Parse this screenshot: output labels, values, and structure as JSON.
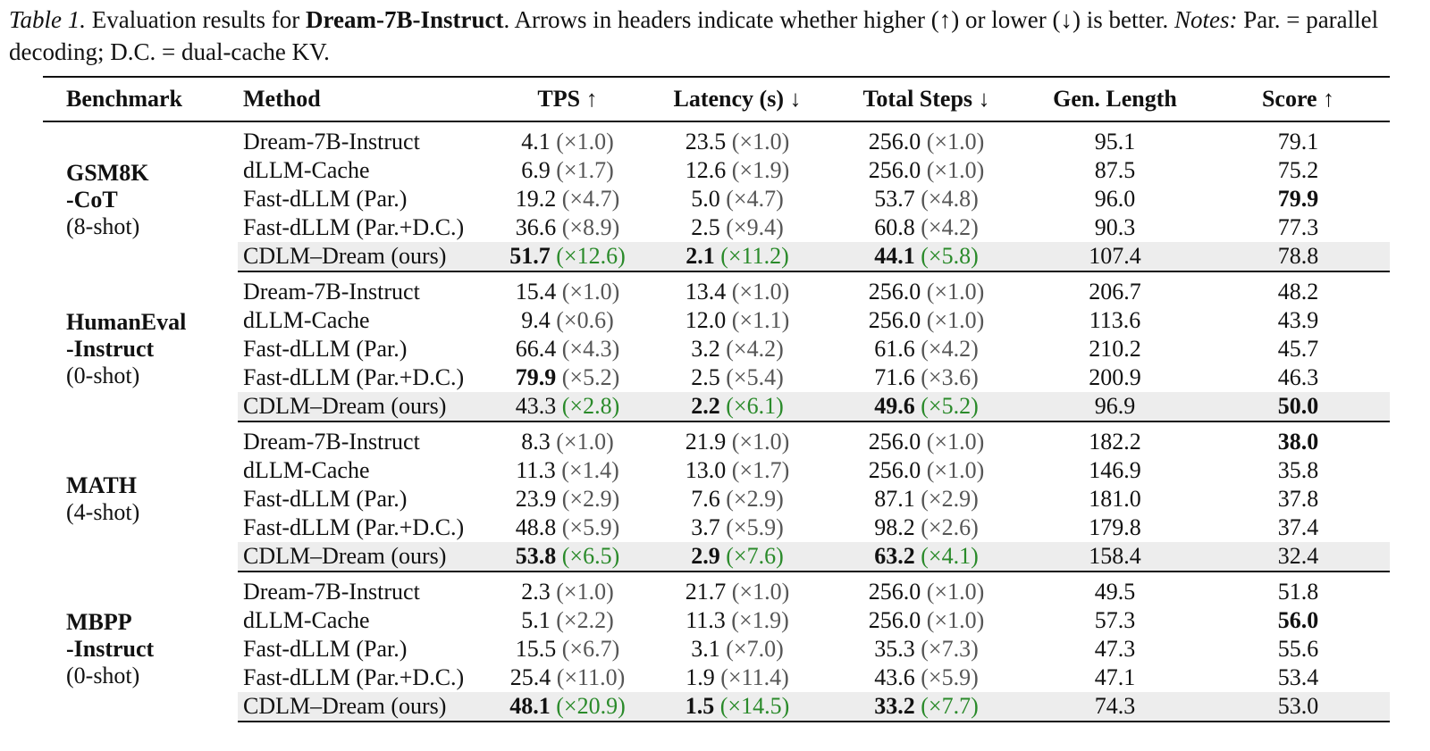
{
  "caption": {
    "label": "Table 1.",
    "text_a": "Evaluation results for",
    "model": "Dream-7B-Instruct",
    "text_b": ". Arrows in headers indicate whether higher (↑) or lower (↓) is better.",
    "notes_label": "Notes:",
    "notes_text": "Par. = parallel decoding; D.C. = dual-cache KV."
  },
  "headers": [
    "Benchmark",
    "Method",
    "TPS ↑",
    "Latency (s) ↓",
    "Total Steps ↓",
    "Gen. Length",
    "Score ↑"
  ],
  "groups": [
    {
      "name_lines": [
        "GSM8K",
        "-CoT"
      ],
      "shot": "(8-shot)",
      "rows": [
        {
          "method": "Dream-7B-Instruct",
          "tps": "4.1",
          "tps_x": "(×1.0)",
          "lat": "23.5",
          "lat_x": "(×1.0)",
          "steps": "256.0",
          "steps_x": "(×1.0)",
          "len": "95.1",
          "score": "79.1"
        },
        {
          "method": "dLLM-Cache",
          "tps": "6.9",
          "tps_x": "(×1.7)",
          "lat": "12.6",
          "lat_x": "(×1.9)",
          "steps": "256.0",
          "steps_x": "(×1.0)",
          "len": "87.5",
          "score": "75.2"
        },
        {
          "method": "Fast-dLLM (Par.)",
          "tps": "19.2",
          "tps_x": "(×4.7)",
          "lat": "5.0",
          "lat_x": "(×4.7)",
          "steps": "53.7",
          "steps_x": "(×4.8)",
          "len": "96.0",
          "score": "79.9",
          "bold": [
            "score"
          ]
        },
        {
          "method": "Fast-dLLM (Par.+D.C.)",
          "tps": "36.6",
          "tps_x": "(×8.9)",
          "lat": "2.5",
          "lat_x": "(×9.4)",
          "steps": "60.8",
          "steps_x": "(×4.2)",
          "len": "90.3",
          "score": "77.3"
        },
        {
          "method": "CDLM–Dream (ours)",
          "tps": "51.7",
          "tps_x": "(×12.6)",
          "lat": "2.1",
          "lat_x": "(×11.2)",
          "steps": "44.1",
          "steps_x": "(×5.8)",
          "len": "107.4",
          "score": "78.8",
          "ours": true,
          "bold": [
            "tps",
            "lat",
            "steps"
          ]
        }
      ]
    },
    {
      "name_lines": [
        "HumanEval",
        "-Instruct"
      ],
      "shot": "(0-shot)",
      "rows": [
        {
          "method": "Dream-7B-Instruct",
          "tps": "15.4",
          "tps_x": "(×1.0)",
          "lat": "13.4",
          "lat_x": "(×1.0)",
          "steps": "256.0",
          "steps_x": "(×1.0)",
          "len": "206.7",
          "score": "48.2"
        },
        {
          "method": "dLLM-Cache",
          "tps": "9.4",
          "tps_x": "(×0.6)",
          "lat": "12.0",
          "lat_x": "(×1.1)",
          "steps": "256.0",
          "steps_x": "(×1.0)",
          "len": "113.6",
          "score": "43.9"
        },
        {
          "method": "Fast-dLLM (Par.)",
          "tps": "66.4",
          "tps_x": "(×4.3)",
          "lat": "3.2",
          "lat_x": "(×4.2)",
          "steps": "61.6",
          "steps_x": "(×4.2)",
          "len": "210.2",
          "score": "45.7"
        },
        {
          "method": "Fast-dLLM (Par.+D.C.)",
          "tps": "79.9",
          "tps_x": "(×5.2)",
          "lat": "2.5",
          "lat_x": "(×5.4)",
          "steps": "71.6",
          "steps_x": "(×3.6)",
          "len": "200.9",
          "score": "46.3",
          "bold": [
            "tps"
          ]
        },
        {
          "method": "CDLM–Dream (ours)",
          "tps": "43.3",
          "tps_x": "(×2.8)",
          "lat": "2.2",
          "lat_x": "(×6.1)",
          "steps": "49.6",
          "steps_x": "(×5.2)",
          "len": "96.9",
          "score": "50.0",
          "ours": true,
          "bold": [
            "lat",
            "steps",
            "score"
          ]
        }
      ]
    },
    {
      "name_lines": [
        "MATH"
      ],
      "shot": "(4-shot)",
      "rows": [
        {
          "method": "Dream-7B-Instruct",
          "tps": "8.3",
          "tps_x": "(×1.0)",
          "lat": "21.9",
          "lat_x": "(×1.0)",
          "steps": "256.0",
          "steps_x": "(×1.0)",
          "len": "182.2",
          "score": "38.0",
          "bold": [
            "score"
          ]
        },
        {
          "method": "dLLM-Cache",
          "tps": "11.3",
          "tps_x": "(×1.4)",
          "lat": "13.0",
          "lat_x": "(×1.7)",
          "steps": "256.0",
          "steps_x": "(×1.0)",
          "len": "146.9",
          "score": "35.8"
        },
        {
          "method": "Fast-dLLM (Par.)",
          "tps": "23.9",
          "tps_x": "(×2.9)",
          "lat": "7.6",
          "lat_x": "(×2.9)",
          "steps": "87.1",
          "steps_x": "(×2.9)",
          "len": "181.0",
          "score": "37.8"
        },
        {
          "method": "Fast-dLLM (Par.+D.C.)",
          "tps": "48.8",
          "tps_x": "(×5.9)",
          "lat": "3.7",
          "lat_x": "(×5.9)",
          "steps": "98.2",
          "steps_x": "(×2.6)",
          "len": "179.8",
          "score": "37.4"
        },
        {
          "method": "CDLM–Dream (ours)",
          "tps": "53.8",
          "tps_x": "(×6.5)",
          "lat": "2.9",
          "lat_x": "(×7.6)",
          "steps": "63.2",
          "steps_x": "(×4.1)",
          "len": "158.4",
          "score": "32.4",
          "ours": true,
          "bold": [
            "tps",
            "lat",
            "steps"
          ]
        }
      ]
    },
    {
      "name_lines": [
        "MBPP",
        "-Instruct"
      ],
      "shot": "(0-shot)",
      "rows": [
        {
          "method": "Dream-7B-Instruct",
          "tps": "2.3",
          "tps_x": "(×1.0)",
          "lat": "21.7",
          "lat_x": "(×1.0)",
          "steps": "256.0",
          "steps_x": "(×1.0)",
          "len": "49.5",
          "score": "51.8"
        },
        {
          "method": "dLLM-Cache",
          "tps": "5.1",
          "tps_x": "(×2.2)",
          "lat": "11.3",
          "lat_x": "(×1.9)",
          "steps": "256.0",
          "steps_x": "(×1.0)",
          "len": "57.3",
          "score": "56.0",
          "bold": [
            "score"
          ]
        },
        {
          "method": "Fast-dLLM (Par.)",
          "tps": "15.5",
          "tps_x": "(×6.7)",
          "lat": "3.1",
          "lat_x": "(×7.0)",
          "steps": "35.3",
          "steps_x": "(×7.3)",
          "len": "47.3",
          "score": "55.6"
        },
        {
          "method": "Fast-dLLM (Par.+D.C.)",
          "tps": "25.4",
          "tps_x": "(×11.0)",
          "lat": "1.9",
          "lat_x": "(×11.4)",
          "steps": "43.6",
          "steps_x": "(×5.9)",
          "len": "47.1",
          "score": "53.4"
        },
        {
          "method": "CDLM–Dream (ours)",
          "tps": "48.1",
          "tps_x": "(×20.9)",
          "lat": "1.5",
          "lat_x": "(×14.5)",
          "steps": "33.2",
          "steps_x": "(×7.7)",
          "len": "74.3",
          "score": "53.0",
          "ours": true,
          "bold": [
            "tps",
            "lat",
            "steps"
          ]
        }
      ]
    }
  ],
  "colors": {
    "speedup_gray": "#555555",
    "speedup_green": "#2a8a2a",
    "highlight_row": "#ededed"
  }
}
